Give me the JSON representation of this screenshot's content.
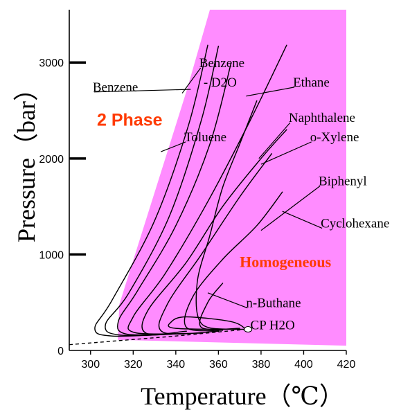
{
  "chart_data": {
    "type": "line",
    "title": "",
    "xlabel": "Temperature（℃）",
    "ylabel": "Pressure（bar）",
    "xlim": [
      290,
      420
    ],
    "ylim": [
      0,
      3550
    ],
    "x_ticks": [
      300,
      320,
      340,
      360,
      380,
      400,
      420
    ],
    "y_ticks": [
      0,
      1000,
      2000,
      3000
    ],
    "grid": false,
    "colors": {
      "homogeneous_region": "#ff8cff",
      "region_label": "#ff3a00",
      "curves": "#000000"
    },
    "regions": [
      {
        "name": "Homogeneous",
        "color": "#ff8cff",
        "boundary": [
          [
            313.5,
            480
          ],
          [
            345,
            2700
          ],
          [
            356,
            3550
          ],
          [
            420,
            3550
          ],
          [
            420,
            50
          ],
          [
            312.8,
            110
          ]
        ]
      }
    ],
    "region_labels": [
      {
        "text": "2 Phase",
        "color": "#ff3a00",
        "x": 303,
        "y": 2340
      },
      {
        "text": "Homogeneous",
        "color": "#ff3a00",
        "x": 370,
        "y": 870
      }
    ],
    "series": [
      {
        "name": "Benzene",
        "points": [
          [
            338,
            170
          ],
          [
            310,
            150
          ],
          [
            302,
            230
          ],
          [
            310,
            520
          ],
          [
            330,
            1350
          ],
          [
            346,
            2350
          ],
          [
            355,
            3180
          ]
        ]
      },
      {
        "name": "Benzene - D2O",
        "points": [
          [
            344,
            175
          ],
          [
            314,
            160
          ],
          [
            307,
            270
          ],
          [
            318,
            600
          ],
          [
            337,
            1400
          ],
          [
            352,
            2400
          ],
          [
            360,
            3170
          ]
        ]
      },
      {
        "name": "Toluene",
        "points": [
          [
            340,
            175
          ],
          [
            317,
            170
          ],
          [
            313,
            300
          ],
          [
            322,
            620
          ],
          [
            340,
            1300
          ],
          [
            356,
            2150
          ],
          [
            366,
            3000
          ]
        ]
      },
      {
        "name": "Ethane",
        "points": [
          [
            352,
            180
          ],
          [
            321,
            185
          ],
          [
            320,
            350
          ],
          [
            335,
            800
          ],
          [
            355,
            1550
          ],
          [
            375,
            2400
          ],
          [
            392,
            3180
          ]
        ]
      },
      {
        "name": "Naphthalene",
        "points": [
          [
            345,
            200
          ],
          [
            326,
            180
          ],
          [
            327,
            420
          ],
          [
            345,
            920
          ],
          [
            362,
            1500
          ],
          [
            380,
            2000
          ],
          [
            392,
            2300
          ]
        ]
      },
      {
        "name": "o-Xylene",
        "points": [
          [
            360,
            200
          ],
          [
            334,
            190
          ],
          [
            336,
            480
          ],
          [
            352,
            1000
          ],
          [
            370,
            1600
          ],
          [
            385,
            2050
          ]
        ]
      },
      {
        "name": "Biphenyl",
        "points": [
          [
            362,
            210
          ],
          [
            345,
            240
          ],
          [
            348,
            560
          ],
          [
            362,
            950
          ],
          [
            378,
            1300
          ],
          [
            390,
            1650
          ]
        ]
      },
      {
        "name": "Cyclohexane",
        "points": [
          [
            368,
            220
          ],
          [
            352,
            280
          ],
          [
            350,
            700
          ],
          [
            356,
            1200
          ],
          [
            362,
            1700
          ],
          [
            370,
            2150
          ],
          [
            378,
            2600
          ]
        ]
      },
      {
        "name": "n-Buthane",
        "points": [
          [
            370,
            230
          ],
          [
            352,
            240
          ],
          [
            355,
            500
          ],
          [
            362,
            700
          ]
        ]
      },
      {
        "name": "CP H2O",
        "points": [
          [
            373,
            220
          ],
          [
            366,
            300
          ],
          [
            345,
            350
          ],
          [
            338,
            300
          ],
          [
            340,
            230
          ],
          [
            373,
            220
          ]
        ]
      }
    ],
    "phase_boundary": [
      [
        290,
        60
      ],
      [
        340,
        150
      ],
      [
        373,
        220
      ]
    ],
    "critical_point": {
      "x": 373.9,
      "y": 220,
      "label": "CP H2O"
    },
    "annotations": [
      {
        "text": "Benzene",
        "x": 301,
        "y": 2700,
        "curve_x": 347,
        "curve_y": 2720
      },
      {
        "text": "Benzene",
        "x": 351,
        "y": 2950,
        "curve_x": 343,
        "curve_y": 2680
      },
      {
        "text": "- D2O",
        "x": 353,
        "y": 2750
      },
      {
        "text": "Toluene",
        "x": 344,
        "y": 2180,
        "curve_x": 333,
        "curve_y": 2070
      },
      {
        "text": "Ethane",
        "x": 395,
        "y": 2750,
        "curve_x": 373,
        "curve_y": 2650
      },
      {
        "text": "Naphthalene",
        "x": 393,
        "y": 2380,
        "curve_x": 379,
        "curve_y": 2000
      },
      {
        "text": "o-Xylene",
        "x": 403,
        "y": 2180,
        "curve_x": 380,
        "curve_y": 1940
      },
      {
        "text": "Biphenyl",
        "x": 407,
        "y": 1720,
        "curve_x": 380,
        "curve_y": 1250
      },
      {
        "text": "Cyclohexane",
        "x": 408,
        "y": 1280,
        "curve_x": 390,
        "curve_y": 1450
      },
      {
        "text": "n-Buthane",
        "x": 373,
        "y": 450,
        "curve_x": 355,
        "curve_y": 600
      },
      {
        "text": "CP H2O",
        "x": 375,
        "y": 220
      }
    ]
  }
}
